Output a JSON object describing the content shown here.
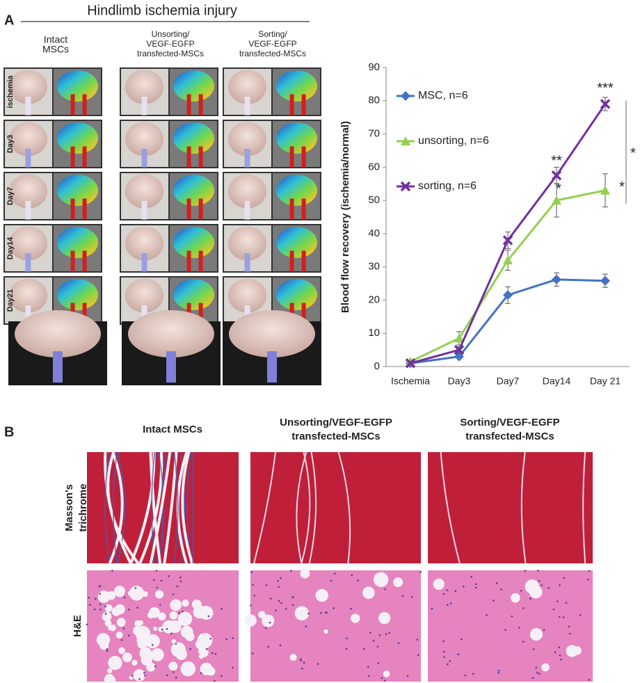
{
  "panel_a": {
    "label": "A",
    "title": "Hindlimb ischemia injury",
    "groups": [
      [
        "Intact",
        "MSCs"
      ],
      [
        "Unsorting/",
        "VEGF-EGFP",
        "transfected-MSCs"
      ],
      [
        "Sorting/",
        "VEGF-EGFP",
        "transfected-MSCs"
      ]
    ],
    "timepoints": [
      "ischemia",
      "Day3",
      "Day7",
      "Day14",
      "Day21"
    ]
  },
  "chart_data": {
    "type": "line",
    "ylabel": "Blood flow recovery (ischemia/normal)",
    "categories": [
      "Ischemia",
      "Day3",
      "Day7",
      "Day14",
      "Day 21"
    ],
    "ylim": [
      0,
      90
    ],
    "yticks": [
      0,
      10,
      20,
      30,
      40,
      50,
      60,
      70,
      80,
      90
    ],
    "series": [
      {
        "name": "MSC, n=6",
        "color": "#4472c4",
        "marker": "diamond",
        "values": [
          1,
          3,
          21.5,
          26.2,
          25.8
        ],
        "errors": [
          0.5,
          0.6,
          2.5,
          2,
          2
        ]
      },
      {
        "name": "unsorting, n=6",
        "color": "#92d050",
        "marker": "triangle",
        "values": [
          1.5,
          8.5,
          32,
          50,
          53
        ],
        "errors": [
          0.5,
          2,
          3,
          5,
          5
        ]
      },
      {
        "name": "sorting, n=6",
        "color": "#7030a0",
        "marker": "x",
        "values": [
          1,
          5,
          38,
          57.5,
          79
        ],
        "errors": [
          0.5,
          1,
          2.5,
          2.5,
          2
        ]
      }
    ],
    "annotations": [
      "***",
      "**",
      "*",
      "*",
      "*"
    ]
  },
  "panel_b": {
    "label": "B",
    "groups": [
      [
        "Intact MSCs"
      ],
      [
        "Unsorting/VEGF-EGFP",
        "transfected-MSCs"
      ],
      [
        "Sorting/VEGF-EGFP",
        "transfected-MSCs"
      ]
    ],
    "stains": [
      [
        "Masson's",
        "trichrome"
      ],
      [
        "H&E"
      ]
    ]
  }
}
